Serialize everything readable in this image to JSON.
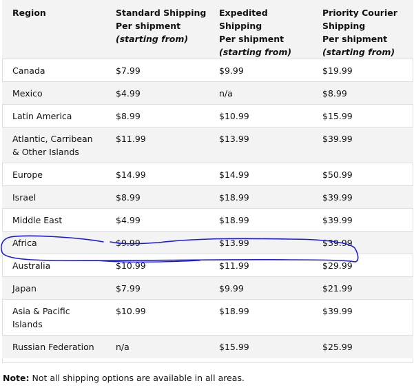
{
  "header": {
    "region": "Region",
    "standard": [
      "Standard Shipping",
      "Per shipment"
    ],
    "standard_sub": "(starting from)",
    "expedited": [
      "Expedited Shipping",
      "Per shipment"
    ],
    "expedited_sub": "(starting from)",
    "priority": [
      "Priority Courier",
      "Shipping",
      "Per shipment"
    ],
    "priority_sub": "(starting from)"
  },
  "rows": [
    {
      "region": "Canada",
      "standard": "$7.99",
      "expedited": "$9.99",
      "priority": "$19.99"
    },
    {
      "region": "Mexico",
      "standard": "$4.99",
      "expedited": "n/a",
      "priority": "$8.99"
    },
    {
      "region": "Latin America",
      "standard": "$8.99",
      "expedited": "$10.99",
      "priority": "$15.99"
    },
    {
      "region_lines": [
        "Atlantic, Carribean",
        "& Other Islands"
      ],
      "standard": "$11.99",
      "expedited": "$13.99",
      "priority": "$39.99"
    },
    {
      "region": "Europe",
      "standard": "$14.99",
      "expedited": "$14.99",
      "priority": "$50.99"
    },
    {
      "region": "Israel",
      "standard": "$8.99",
      "expedited": "$18.99",
      "priority": "$39.99"
    },
    {
      "region": "Middle East",
      "standard": "$4.99",
      "expedited": "$18.99",
      "priority": "$39.99"
    },
    {
      "region": "Africa",
      "standard": "$9.99",
      "expedited": "$13.99",
      "priority": "$39.99"
    },
    {
      "region": "Australia",
      "standard": "$10.99",
      "expedited": "$11.99",
      "priority": "$29.99"
    },
    {
      "region": "Japan",
      "standard": "$7.99",
      "expedited": "$9.99",
      "priority": "$21.99"
    },
    {
      "region_lines": [
        "Asia & Pacific",
        "Islands"
      ],
      "standard": "$10.99",
      "expedited": "$18.99",
      "priority": "$39.99"
    },
    {
      "region": "Russian Federation",
      "standard": "n/a",
      "expedited": "$15.99",
      "priority": "$25.99"
    }
  ],
  "note": {
    "label": "Note:",
    "text": " Not all shipping options are available in all areas."
  },
  "colors": {
    "annotation": "#1a1adb",
    "stripe": "#f3f3f3",
    "border": "#dddddd"
  }
}
